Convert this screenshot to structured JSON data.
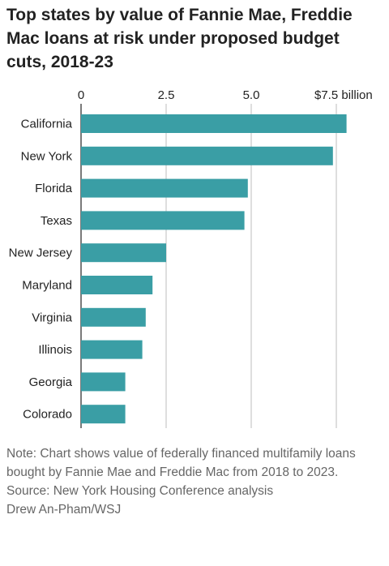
{
  "title": "Top states by value of Fannie Mae, Freddie Mac loans at risk under proposed budget cuts, 2018-23",
  "note": "Note: Chart shows value of federally financed multifamily loans bought by Fannie Mae and Freddie Mac from 2018 to 2023.",
  "source": "Source: New York Housing Conference analysis",
  "credit": "Drew An-Pham/WSJ",
  "colors": {
    "bar": "#3a9ea5",
    "grid": "#bdbdbd",
    "axis": "#222222"
  },
  "chart_data": {
    "type": "bar",
    "orientation": "horizontal",
    "categories": [
      "California",
      "New York",
      "Florida",
      "Texas",
      "New Jersey",
      "Maryland",
      "Virginia",
      "Illinois",
      "Georgia",
      "Colorado"
    ],
    "values": [
      7.8,
      7.4,
      4.9,
      4.8,
      2.5,
      2.1,
      1.9,
      1.8,
      1.3,
      1.3
    ],
    "xlim": [
      0,
      8
    ],
    "ticks": [
      0,
      2.5,
      5.0,
      7.5
    ],
    "tick_labels": [
      "0",
      "2.5",
      "5.0",
      "$7.5 billion"
    ],
    "grid": true,
    "unit": "billion dollars"
  }
}
